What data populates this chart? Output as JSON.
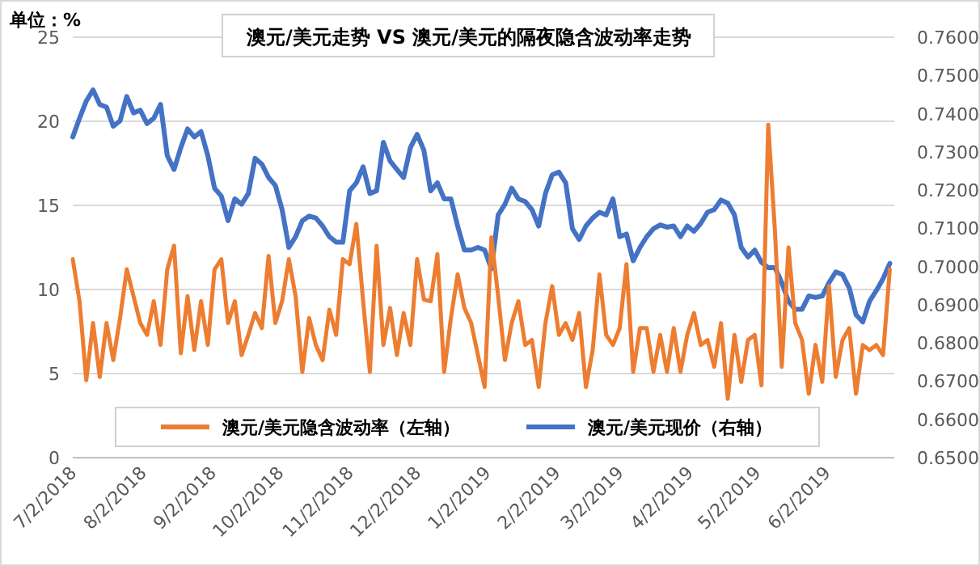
{
  "chart_data": {
    "type": "line",
    "title": "澳元/美元走势 VS 澳元/美元的隔夜隐含波动率走势",
    "ylabel": "单位：%",
    "grid": "y",
    "legend": "bottom",
    "xlim": [
      "2018-07-02",
      "2019-07-02"
    ],
    "xticks": [
      {
        "value": "2018-07-02",
        "label": "7/2/2018"
      },
      {
        "value": "2018-08-02",
        "label": "8/2/2018"
      },
      {
        "value": "2018-09-02",
        "label": "9/2/2018"
      },
      {
        "value": "2018-10-02",
        "label": "10/2/2018"
      },
      {
        "value": "2018-11-02",
        "label": "11/2/2018"
      },
      {
        "value": "2018-12-02",
        "label": "12/2/2018"
      },
      {
        "value": "2019-01-02",
        "label": "1/2/2019"
      },
      {
        "value": "2019-02-02",
        "label": "2/2/2019"
      },
      {
        "value": "2019-03-02",
        "label": "3/2/2019"
      },
      {
        "value": "2019-04-02",
        "label": "4/2/2019"
      },
      {
        "value": "2019-05-02",
        "label": "5/2/2019"
      },
      {
        "value": "2019-06-02",
        "label": "6/2/2019"
      }
    ],
    "ylim": [
      0,
      25
    ],
    "yticks": [
      0,
      5,
      10,
      15,
      20,
      25
    ],
    "y2lim": [
      0.65,
      0.76
    ],
    "y2ticks": [
      {
        "value": 0.65,
        "label": "0.6500"
      },
      {
        "value": 0.66,
        "label": "0.6600"
      },
      {
        "value": 0.67,
        "label": "0.6700"
      },
      {
        "value": 0.68,
        "label": "0.6800"
      },
      {
        "value": 0.69,
        "label": "0.6900"
      },
      {
        "value": 0.7,
        "label": "0.7000"
      },
      {
        "value": 0.71,
        "label": "0.7100"
      },
      {
        "value": 0.72,
        "label": "0.7200"
      },
      {
        "value": 0.73,
        "label": "0.7300"
      },
      {
        "value": 0.74,
        "label": "0.7400"
      },
      {
        "value": 0.75,
        "label": "0.7500"
      },
      {
        "value": 0.76,
        "label": "0.7600"
      }
    ],
    "x": [
      "2018-07-02",
      "2018-07-05",
      "2018-07-08",
      "2018-07-11",
      "2018-07-14",
      "2018-07-17",
      "2018-07-20",
      "2018-07-23",
      "2018-07-26",
      "2018-07-29",
      "2018-08-01",
      "2018-08-04",
      "2018-08-07",
      "2018-08-10",
      "2018-08-13",
      "2018-08-16",
      "2018-08-19",
      "2018-08-22",
      "2018-08-25",
      "2018-08-28",
      "2018-08-31",
      "2018-09-03",
      "2018-09-06",
      "2018-09-09",
      "2018-09-12",
      "2018-09-15",
      "2018-09-18",
      "2018-09-21",
      "2018-09-24",
      "2018-09-27",
      "2018-09-30",
      "2018-10-03",
      "2018-10-06",
      "2018-10-09",
      "2018-10-12",
      "2018-10-15",
      "2018-10-18",
      "2018-10-21",
      "2018-10-24",
      "2018-10-27",
      "2018-10-30",
      "2018-11-02",
      "2018-11-05",
      "2018-11-08",
      "2018-11-11",
      "2018-11-14",
      "2018-11-17",
      "2018-11-20",
      "2018-11-23",
      "2018-11-26",
      "2018-11-29",
      "2018-12-02",
      "2018-12-05",
      "2018-12-08",
      "2018-12-11",
      "2018-12-14",
      "2018-12-17",
      "2018-12-20",
      "2018-12-23",
      "2018-12-26",
      "2018-12-29",
      "2019-01-01",
      "2019-01-04",
      "2019-01-07",
      "2019-01-10",
      "2019-01-13",
      "2019-01-16",
      "2019-01-19",
      "2019-01-22",
      "2019-01-25",
      "2019-01-28",
      "2019-01-31",
      "2019-02-03",
      "2019-02-06",
      "2019-02-09",
      "2019-02-12",
      "2019-02-15",
      "2019-02-18",
      "2019-02-21",
      "2019-02-24",
      "2019-02-27",
      "2019-03-02",
      "2019-03-05",
      "2019-03-08",
      "2019-03-11",
      "2019-03-14",
      "2019-03-17",
      "2019-03-20",
      "2019-03-23",
      "2019-03-26",
      "2019-03-29",
      "2019-04-01",
      "2019-04-04",
      "2019-04-07",
      "2019-04-10",
      "2019-04-13",
      "2019-04-16",
      "2019-04-19",
      "2019-04-22",
      "2019-04-25",
      "2019-04-28",
      "2019-05-01",
      "2019-05-04",
      "2019-05-07",
      "2019-05-10",
      "2019-05-13",
      "2019-05-16",
      "2019-05-19",
      "2019-05-22",
      "2019-05-25",
      "2019-05-28",
      "2019-05-31",
      "2019-06-03",
      "2019-06-06",
      "2019-06-09",
      "2019-06-12",
      "2019-06-15",
      "2019-06-18",
      "2019-06-21",
      "2019-06-24",
      "2019-06-27",
      "2019-06-30"
    ],
    "series": [
      {
        "name": "澳元/美元隐含波动率（左轴）",
        "color": "#ed7d31",
        "values": [
          11.8,
          9.3,
          4.6,
          8.0,
          4.8,
          8.0,
          5.8,
          8.3,
          11.2,
          9.6,
          8.0,
          7.3,
          9.3,
          6.7,
          11.2,
          12.6,
          6.2,
          9.6,
          6.4,
          9.3,
          6.7,
          11.2,
          11.8,
          8.0,
          9.3,
          6.1,
          7.3,
          8.6,
          7.7,
          12.0,
          8.0,
          9.3,
          11.8,
          9.6,
          5.1,
          8.3,
          6.7,
          5.8,
          8.8,
          7.3,
          11.8,
          11.5,
          13.9,
          9.3,
          5.1,
          12.6,
          6.7,
          8.9,
          6.1,
          8.6,
          6.7,
          11.8,
          9.4,
          9.3,
          12.1,
          5.1,
          8.3,
          10.9,
          8.9,
          8.0,
          6.1,
          4.2,
          13.1,
          9.6,
          5.8,
          8.0,
          9.3,
          6.7,
          7.0,
          4.2,
          8.0,
          10.2,
          7.3,
          8.0,
          7.0,
          8.6,
          4.2,
          6.4,
          10.9,
          7.3,
          6.7,
          7.7,
          11.5,
          5.1,
          7.7,
          7.7,
          5.1,
          7.3,
          5.1,
          7.7,
          5.1,
          7.3,
          8.6,
          6.7,
          7.0,
          5.4,
          8.0,
          3.5,
          7.3,
          4.5,
          7.0,
          7.3,
          4.3,
          19.8,
          13.4,
          5.4,
          12.5,
          8.0,
          7.0,
          3.8,
          6.7,
          4.5,
          10.2,
          4.8,
          7.0,
          7.7,
          3.8,
          6.7,
          6.4,
          6.7,
          6.1,
          11.2
        ]
      },
      {
        "name": "澳元/美元现价（右轴）",
        "color": "#4472c4",
        "axis": "y2",
        "values": [
          0.7339,
          0.7388,
          0.7433,
          0.7462,
          0.7424,
          0.7417,
          0.7367,
          0.7381,
          0.7445,
          0.7402,
          0.7409,
          0.7374,
          0.7388,
          0.7424,
          0.729,
          0.7254,
          0.7311,
          0.736,
          0.7339,
          0.7353,
          0.729,
          0.7205,
          0.7184,
          0.712,
          0.7177,
          0.7163,
          0.7191,
          0.7283,
          0.7268,
          0.7233,
          0.7212,
          0.7149,
          0.705,
          0.7078,
          0.712,
          0.7132,
          0.7127,
          0.7106,
          0.7078,
          0.7064,
          0.7064,
          0.7198,
          0.7219,
          0.7261,
          0.7191,
          0.7198,
          0.7325,
          0.7276,
          0.7254,
          0.7233,
          0.7311,
          0.7346,
          0.7304,
          0.7198,
          0.7219,
          0.7177,
          0.7177,
          0.7106,
          0.7043,
          0.7043,
          0.705,
          0.7043,
          0.6994,
          0.7135,
          0.7163,
          0.7205,
          0.7177,
          0.717,
          0.7149,
          0.7106,
          0.7191,
          0.724,
          0.7247,
          0.7219,
          0.7099,
          0.7071,
          0.7106,
          0.7127,
          0.7142,
          0.7135,
          0.7177,
          0.7078,
          0.7085,
          0.7015,
          0.705,
          0.7078,
          0.7099,
          0.7109,
          0.7103,
          0.7106,
          0.7078,
          0.7106,
          0.7092,
          0.7113,
          0.7142,
          0.7149,
          0.7174,
          0.7166,
          0.7135,
          0.705,
          0.7025,
          0.7043,
          0.7011,
          0.6997,
          0.6997,
          0.6958,
          0.6909,
          0.6888,
          0.6888,
          0.6923,
          0.6919,
          0.6923,
          0.6958,
          0.6986,
          0.6979,
          0.6944,
          0.6874,
          0.6855,
          0.6909,
          0.6937,
          0.6968,
          0.7008
        ]
      }
    ]
  }
}
